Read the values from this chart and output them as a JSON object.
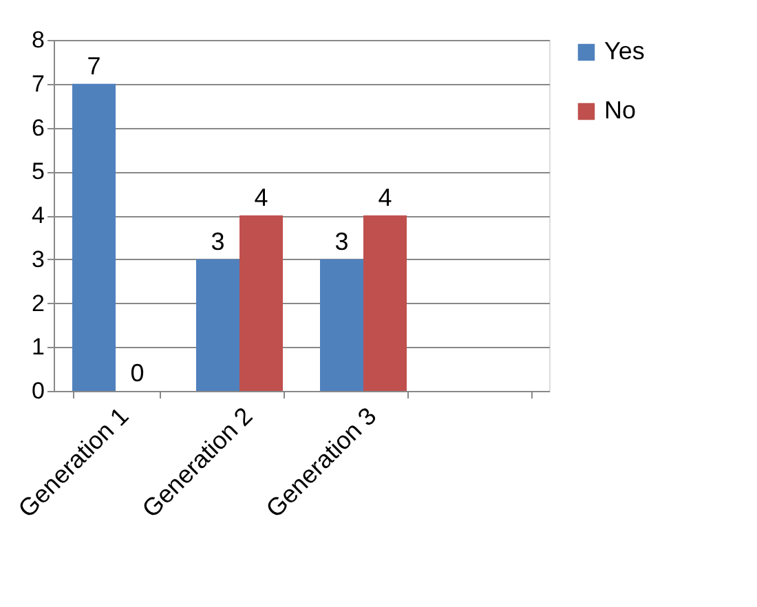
{
  "chart_data": {
    "type": "bar",
    "categories": [
      "Generation 1",
      "Generation 2",
      "Generation 3",
      null
    ],
    "series": [
      {
        "name": "Yes",
        "color": "#4f81bd",
        "values": [
          7,
          3,
          3,
          null
        ]
      },
      {
        "name": "No",
        "color": "#c0504d",
        "values": [
          0,
          4,
          4,
          null
        ]
      }
    ],
    "ylim": [
      0,
      8
    ],
    "yticks": [
      0,
      1,
      2,
      3,
      4,
      5,
      6,
      7,
      8
    ],
    "grid": "y",
    "legend": "right",
    "data_labels": true
  }
}
